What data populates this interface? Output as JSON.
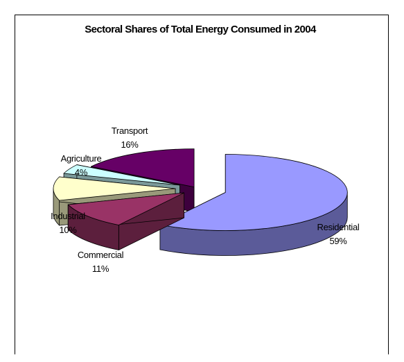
{
  "chart_data": {
    "type": "pie",
    "title": "Sectoral Shares of Total Energy Consumed in 2004",
    "slices": [
      {
        "label": "Residential",
        "value": 59,
        "value_label": "59%",
        "color": "#9999ff",
        "side_color": "#5b5b99"
      },
      {
        "label": "Commercial",
        "value": 11,
        "value_label": "11%",
        "color": "#993366",
        "side_color": "#5c1f3d"
      },
      {
        "label": "Industrial",
        "value": 10,
        "value_label": "10%",
        "color": "#ffffcc",
        "side_color": "#99997a"
      },
      {
        "label": "Agriculture",
        "value": 4,
        "value_label": "4%",
        "color": "#ccffff",
        "side_color": "#7a9999"
      },
      {
        "label": "Transport",
        "value": 16,
        "value_label": "16%",
        "color": "#660066",
        "side_color": "#3d003d"
      }
    ],
    "legend": "none",
    "style": "3d-exploded"
  }
}
